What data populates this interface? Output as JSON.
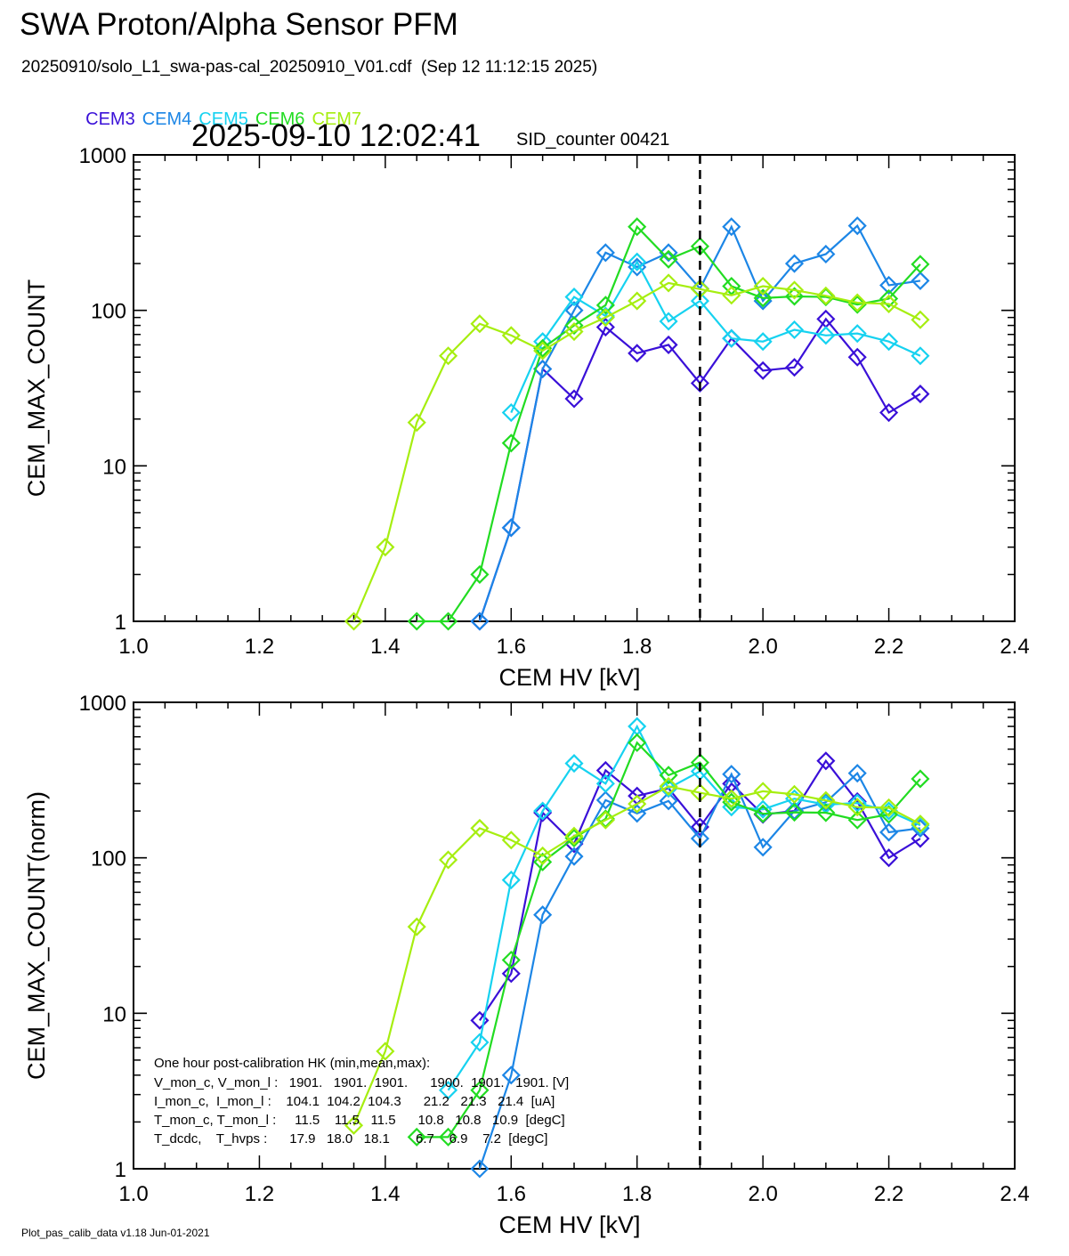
{
  "header": {
    "title": "SWA Proton/Alpha Sensor PFM",
    "subtitle": "20250910/solo_L1_swa-pas-cal_20250910_V01.cdf  (Sep 12 11:12:15 2025)",
    "timestamp": "2025-09-10 12:02:41",
    "sid": "SID_counter 00421",
    "footer": "Plot_pas_calib_data v1.18 Jun-01-2021"
  },
  "legend": [
    {
      "name": "CEM3",
      "color": "#3a10d8"
    },
    {
      "name": "CEM4",
      "color": "#1c86e6"
    },
    {
      "name": "CEM5",
      "color": "#16d2f0"
    },
    {
      "name": "CEM6",
      "color": "#22dc22"
    },
    {
      "name": "CEM7",
      "color": "#a6ee10"
    }
  ],
  "hk": {
    "title": "One hour post-calibration HK (min,mean,max):",
    "lines": [
      "V_mon_c, V_mon_l :   1901.   1901.  1901.      1900.  1901.   1901. [V]",
      "I_mon_c,  I_mon_l :    104.1  104.2  104.3      21.2   21.3   21.4  [uA]",
      "T_mon_c, T_mon_l :     11.5    11.5   11.5      10.8   10.8   10.9  [degC]",
      "T_dcdc,    T_hvps :      17.9   18.0   18.1       6.7    6.9    7.2  [degC]"
    ]
  },
  "chart_data": [
    {
      "type": "line",
      "xlabel": "CEM HV [kV]",
      "ylabel": "CEM_MAX_COUNT",
      "xlim": [
        1.0,
        2.4
      ],
      "ylim": [
        1,
        1000
      ],
      "yscale": "log",
      "xticks": [
        "1.0",
        "1.2",
        "1.4",
        "1.6",
        "1.8",
        "2.0",
        "2.2",
        "2.4"
      ],
      "yticks": [
        "1",
        "10",
        "100",
        "1000"
      ],
      "vline": 1.9,
      "series": [
        {
          "name": "CEM3",
          "color": "#3a10d8",
          "x": [
            1.55,
            1.6,
            1.65,
            1.7,
            1.75,
            1.8,
            1.85,
            1.9,
            1.95,
            2.0,
            2.05,
            2.1,
            2.15,
            2.2,
            2.25
          ],
          "y": [
            1,
            4,
            42,
            27,
            78,
            53,
            60,
            34,
            66,
            41,
            43,
            88,
            50,
            22,
            29
          ]
        },
        {
          "name": "CEM4",
          "color": "#1c86e6",
          "x": [
            1.55,
            1.6,
            1.65,
            1.7,
            1.75,
            1.8,
            1.85,
            1.9,
            1.95,
            2.0,
            2.05,
            2.1,
            2.15,
            2.2,
            2.25
          ],
          "y": [
            1,
            4,
            42,
            100,
            235,
            190,
            235,
            138,
            345,
            115,
            200,
            230,
            350,
            145,
            155
          ]
        },
        {
          "name": "CEM5",
          "color": "#16d2f0",
          "x": [
            1.6,
            1.65,
            1.7,
            1.75,
            1.8,
            1.85,
            1.9,
            1.95,
            2.0,
            2.05,
            2.1,
            2.15,
            2.2,
            2.25
          ],
          "y": [
            22,
            63,
            122,
            92,
            205,
            85,
            115,
            66,
            63,
            75,
            69,
            71,
            63,
            51
          ]
        },
        {
          "name": "CEM6",
          "color": "#22dc22",
          "x": [
            1.45,
            1.5,
            1.55,
            1.6,
            1.65,
            1.7,
            1.75,
            1.8,
            1.85,
            1.9,
            1.95,
            2.0,
            2.05,
            2.1,
            2.15,
            2.2,
            2.25
          ],
          "y": [
            1,
            1,
            2,
            14,
            57,
            80,
            108,
            345,
            213,
            258,
            143,
            120,
            123,
            122,
            109,
            119,
            198
          ]
        },
        {
          "name": "CEM7",
          "color": "#a6ee10",
          "x": [
            1.35,
            1.4,
            1.45,
            1.5,
            1.55,
            1.6,
            1.65,
            1.7,
            1.75,
            1.8,
            1.85,
            1.9,
            1.95,
            2.0,
            2.05,
            2.1,
            2.15,
            2.2,
            2.25
          ],
          "y": [
            1,
            3,
            19,
            51,
            82,
            69,
            55,
            73,
            90,
            115,
            150,
            137,
            125,
            143,
            135,
            124,
            112,
            110,
            87
          ]
        }
      ]
    },
    {
      "type": "line",
      "xlabel": "CEM HV [kV]",
      "ylabel": "CEM_MAX_COUNT(norm)",
      "xlim": [
        1.0,
        2.4
      ],
      "ylim": [
        1,
        1000
      ],
      "yscale": "log",
      "xticks": [
        "1.0",
        "1.2",
        "1.4",
        "1.6",
        "1.8",
        "2.0",
        "2.2",
        "2.4"
      ],
      "yticks": [
        "1",
        "10",
        "100",
        "1000"
      ],
      "vline": 1.9,
      "series": [
        {
          "name": "CEM3",
          "color": "#3a10d8",
          "x": [
            1.55,
            1.6,
            1.65,
            1.7,
            1.75,
            1.8,
            1.85,
            1.9,
            1.95,
            2.0,
            2.05,
            2.1,
            2.15,
            2.2,
            2.25
          ],
          "y": [
            9,
            18,
            195,
            123,
            365,
            250,
            280,
            158,
            300,
            190,
            200,
            420,
            230,
            100,
            133
          ]
        },
        {
          "name": "CEM4",
          "color": "#1c86e6",
          "x": [
            1.55,
            1.6,
            1.65,
            1.7,
            1.75,
            1.8,
            1.85,
            1.9,
            1.95,
            2.0,
            2.05,
            2.1,
            2.15,
            2.2,
            2.25
          ],
          "y": [
            1,
            4,
            43,
            102,
            235,
            193,
            232,
            133,
            345,
            117,
            200,
            228,
            350,
            146,
            155
          ]
        },
        {
          "name": "CEM5",
          "color": "#16d2f0",
          "x": [
            1.5,
            1.55,
            1.6,
            1.65,
            1.7,
            1.75,
            1.8,
            1.85,
            1.9,
            1.95,
            2.0,
            2.05,
            2.1,
            2.15,
            2.2,
            2.25
          ],
          "y": [
            3.2,
            6.5,
            72,
            200,
            405,
            300,
            700,
            280,
            360,
            212,
            205,
            240,
            220,
            225,
            200,
            162
          ]
        },
        {
          "name": "CEM6",
          "color": "#22dc22",
          "x": [
            1.45,
            1.5,
            1.55,
            1.6,
            1.65,
            1.7,
            1.75,
            1.8,
            1.85,
            1.9,
            1.95,
            2.0,
            2.05,
            2.1,
            2.15,
            2.2,
            2.25
          ],
          "y": [
            1.6,
            1.6,
            3.2,
            22,
            94,
            134,
            178,
            550,
            340,
            410,
            228,
            192,
            196,
            195,
            175,
            190,
            322
          ]
        },
        {
          "name": "CEM7",
          "color": "#a6ee10",
          "x": [
            1.35,
            1.4,
            1.45,
            1.5,
            1.55,
            1.6,
            1.65,
            1.7,
            1.75,
            1.8,
            1.85,
            1.9,
            1.95,
            2.0,
            2.05,
            2.1,
            2.15,
            2.2,
            2.25
          ],
          "y": [
            1.9,
            5.7,
            36,
            97,
            155,
            130,
            103,
            138,
            175,
            222,
            288,
            262,
            240,
            268,
            256,
            234,
            212,
            210,
            165
          ]
        }
      ]
    }
  ]
}
